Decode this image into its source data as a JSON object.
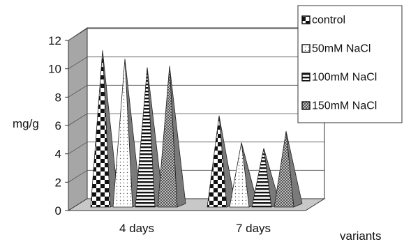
{
  "chart_data": {
    "type": "bar",
    "bar_shape": "pyramid-3d",
    "ylabel": "mg/g",
    "xlabel": "variants",
    "categories": [
      "4 days",
      "7 days"
    ],
    "ylim": [
      0,
      12
    ],
    "yticks": [
      "0",
      "2",
      "4",
      "6",
      "8",
      "10",
      "12"
    ],
    "grid": true,
    "legend_position": "top-right",
    "series": [
      {
        "name": "control",
        "pattern": "checkerboard",
        "values": [
          10.9,
          6.3
        ]
      },
      {
        "name": "50mM NaCl",
        "pattern": "dotted",
        "values": [
          10.3,
          4.4
        ]
      },
      {
        "name": "100mM NaCl",
        "pattern": "horizontal-stripes",
        "values": [
          9.7,
          4.0
        ]
      },
      {
        "name": "150mM NaCl",
        "pattern": "fine-checker",
        "values": [
          9.8,
          5.2
        ]
      }
    ]
  }
}
